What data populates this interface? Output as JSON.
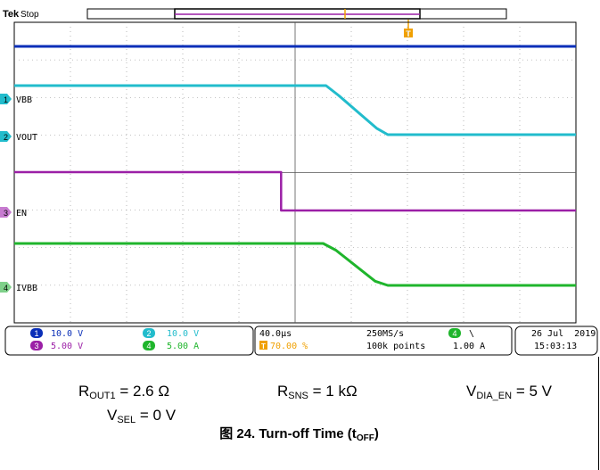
{
  "scope": {
    "brand": "Tek",
    "mode": "Stop",
    "trigger_marker": "T",
    "channel_labels": [
      {
        "id": "1",
        "label": "VBB"
      },
      {
        "id": "2",
        "label": "VOUT"
      },
      {
        "id": "3",
        "label": "EN"
      },
      {
        "id": "4",
        "label": "IVBB"
      }
    ],
    "scales": [
      {
        "ch": "1",
        "value": "10.0 V"
      },
      {
        "ch": "2",
        "value": "10.0 V"
      },
      {
        "ch": "3",
        "value": "5.00 V"
      },
      {
        "ch": "4",
        "value": "5.00 A"
      }
    ],
    "timebase": "40.0µs",
    "trigger_position": "70.00 %",
    "trigger_position_icon": "T",
    "sample_rate": "250MS/s",
    "record_length": "100k points",
    "trigger_channel": "4",
    "trigger_slope": "\\",
    "trigger_level": "1.00 A",
    "date": "26 Jul  2019",
    "time": "15:03:13",
    "colors": {
      "ch1": "#0a2fb8",
      "ch2": "#22bccc",
      "ch3": "#9b1fa6",
      "ch4": "#1fb52c",
      "trigger": "#f0a000"
    }
  },
  "chart_data": {
    "type": "line",
    "x_unit": "µs",
    "x_divisions": 10,
    "x_per_div": 40,
    "xlim": [
      0,
      400
    ],
    "grid": true,
    "series": [
      {
        "name": "VBB",
        "channel": "1",
        "points": [
          [
            0,
            0.0
          ],
          [
            400,
            0.0
          ]
        ]
      },
      {
        "name": "VOUT",
        "channel": "2",
        "points": [
          [
            0,
            1.0
          ],
          [
            222,
            1.0
          ],
          [
            231,
            0.8
          ],
          [
            258,
            0.13
          ],
          [
            266,
            0.0
          ],
          [
            400,
            0.0
          ]
        ]
      },
      {
        "name": "EN",
        "channel": "3",
        "points": [
          [
            0,
            1.0
          ],
          [
            190,
            1.0
          ],
          [
            190,
            0.0
          ],
          [
            400,
            0.0
          ]
        ]
      },
      {
        "name": "IVBB",
        "channel": "4",
        "points": [
          [
            0,
            1.0
          ],
          [
            220,
            1.0
          ],
          [
            229,
            0.84
          ],
          [
            257,
            0.1
          ],
          [
            266,
            0.0
          ],
          [
            400,
            0.0
          ]
        ]
      }
    ]
  },
  "captions": {
    "rout_sym": "R",
    "rout_sub": "OUT1",
    "rout_val": " = 2.6 Ω",
    "rsns_sym": "R",
    "rsns_sub": "SNS",
    "rsns_val": " = 1 kΩ",
    "vdia_sym": "V",
    "vdia_sub": "DIA_EN",
    "vdia_val": " = 5 V",
    "vsel_sym": "V",
    "vsel_sub": "SEL",
    "vsel_val": " = 0 V"
  },
  "figure": {
    "prefix": "图 24. Turn-off Time (t",
    "sub": "OFF",
    "suffix": ")"
  }
}
